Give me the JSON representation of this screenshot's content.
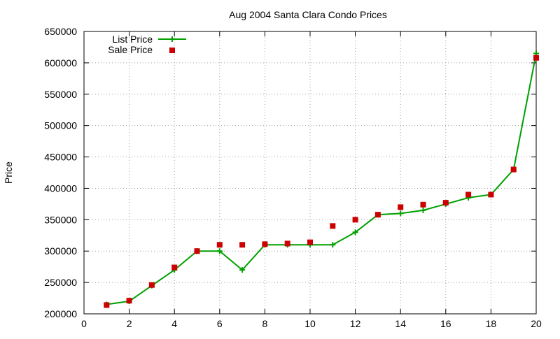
{
  "chart_data": {
    "type": "line",
    "title": "Aug 2004 Santa Clara Condo Prices",
    "xlabel": "",
    "ylabel": "Price",
    "xlim": [
      0,
      20
    ],
    "ylim": [
      200000,
      650000
    ],
    "x_ticks": [
      0,
      2,
      4,
      6,
      8,
      10,
      12,
      14,
      16,
      18,
      20
    ],
    "y_ticks": [
      200000,
      250000,
      300000,
      350000,
      400000,
      450000,
      500000,
      550000,
      600000,
      650000
    ],
    "grid": true,
    "legend_position": "top-left",
    "series": [
      {
        "name": "List Price",
        "style": "linespoints",
        "marker": "plus",
        "color": "#00a000",
        "x": [
          1,
          2,
          3,
          4,
          5,
          6,
          7,
          8,
          9,
          10,
          11,
          12,
          13,
          14,
          15,
          16,
          17,
          18,
          19,
          20
        ],
        "y": [
          215000,
          220000,
          245000,
          270000,
          300000,
          300000,
          270000,
          310000,
          310000,
          310000,
          310000,
          330000,
          358000,
          360000,
          365000,
          375000,
          385000,
          390000,
          430000,
          615000
        ]
      },
      {
        "name": "Sale Price",
        "style": "points",
        "marker": "square",
        "color": "#cc0000",
        "x": [
          1,
          2,
          3,
          4,
          5,
          6,
          7,
          8,
          9,
          10,
          11,
          12,
          13,
          14,
          15,
          16,
          17,
          18,
          19,
          20
        ],
        "y": [
          214000,
          221000,
          246000,
          274000,
          300000,
          310000,
          310000,
          311000,
          312000,
          314000,
          340000,
          350000,
          358000,
          370000,
          374000,
          377000,
          390000,
          390000,
          430000,
          608000
        ]
      }
    ]
  }
}
